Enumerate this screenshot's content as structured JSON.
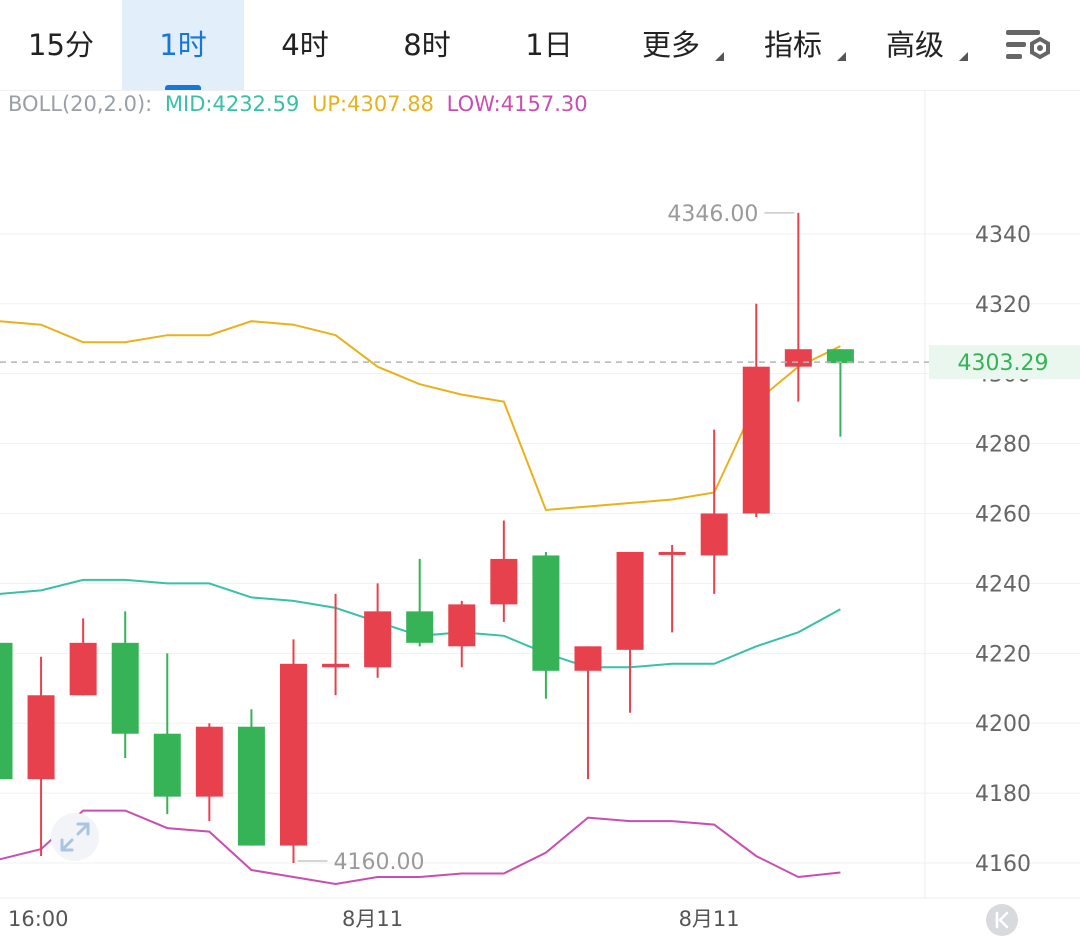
{
  "tabs": [
    {
      "label": "15分",
      "active": false,
      "dropdown": false
    },
    {
      "label": "1时",
      "active": true,
      "dropdown": false
    },
    {
      "label": "4时",
      "active": false,
      "dropdown": false
    },
    {
      "label": "8时",
      "active": false,
      "dropdown": false
    },
    {
      "label": "1日",
      "active": false,
      "dropdown": false
    },
    {
      "label": "更多",
      "active": false,
      "dropdown": true
    },
    {
      "label": "指标",
      "active": false,
      "dropdown": true
    },
    {
      "label": "高级",
      "active": false,
      "dropdown": true
    }
  ],
  "settings_icon": "chart-settings-icon",
  "indicator": {
    "name": "BOLL(20,2.0):",
    "mid": "MID:4232.59",
    "up": "UP:4307.88",
    "low": "LOW:4157.30",
    "colors": {
      "name": "#9aa0a6",
      "mid": "#39c0a6",
      "up": "#e8b21a",
      "low": "#c84fb0"
    }
  },
  "colors": {
    "up": "#e8414e",
    "down": "#35b356",
    "accent": "#1677d6"
  },
  "chart_data": {
    "type": "candlestick",
    "ylim": [
      4150,
      4372
    ],
    "y_ticks": [
      4160,
      4180,
      4200,
      4220,
      4240,
      4260,
      4280,
      4300,
      4320,
      4340
    ],
    "x_labels": [
      {
        "label": "16:00",
        "index": 0
      },
      {
        "label": "8月11",
        "index": 8
      },
      {
        "label": "8月11",
        "index": 16
      }
    ],
    "last_price": "4303.29",
    "max_label": "4346.00",
    "min_label": "4160.00",
    "candles": [
      {
        "o": 4223,
        "h": 4223,
        "l": 4184,
        "c": 4184
      },
      {
        "o": 4184,
        "h": 4219,
        "l": 4162,
        "c": 4208
      },
      {
        "o": 4208,
        "h": 4230,
        "l": 4208,
        "c": 4223
      },
      {
        "o": 4223,
        "h": 4232,
        "l": 4190,
        "c": 4197
      },
      {
        "o": 4197,
        "h": 4220,
        "l": 4174,
        "c": 4179
      },
      {
        "o": 4179,
        "h": 4200,
        "l": 4172,
        "c": 4199
      },
      {
        "o": 4199,
        "h": 4204,
        "l": 4165,
        "c": 4165
      },
      {
        "o": 4165,
        "h": 4224,
        "l": 4160,
        "c": 4217
      },
      {
        "o": 4216,
        "h": 4237,
        "l": 4208,
        "c": 4217
      },
      {
        "o": 4216,
        "h": 4240,
        "l": 4213,
        "c": 4232
      },
      {
        "o": 4232,
        "h": 4247,
        "l": 4222,
        "c": 4223
      },
      {
        "o": 4222,
        "h": 4235,
        "l": 4216,
        "c": 4234
      },
      {
        "o": 4234,
        "h": 4258,
        "l": 4229,
        "c": 4247
      },
      {
        "o": 4248,
        "h": 4249,
        "l": 4207,
        "c": 4215
      },
      {
        "o": 4215,
        "h": 4222,
        "l": 4184,
        "c": 4222
      },
      {
        "o": 4221,
        "h": 4249,
        "l": 4203,
        "c": 4249
      },
      {
        "o": 4249,
        "h": 4251,
        "l": 4226,
        "c": 4249
      },
      {
        "o": 4248,
        "h": 4284,
        "l": 4237,
        "c": 4260
      },
      {
        "o": 4260,
        "h": 4320,
        "l": 4259,
        "c": 4302
      },
      {
        "o": 4302,
        "h": 4346,
        "l": 4292,
        "c": 4307
      },
      {
        "o": 4307,
        "h": 4307,
        "l": 4282,
        "c": 4303
      }
    ],
    "boll_up": [
      4315,
      4314,
      4309,
      4309,
      4311,
      4311,
      4315,
      4314,
      4311,
      4302,
      4297,
      4294,
      4292,
      4261,
      4262,
      4263,
      4264,
      4266,
      4292,
      4302,
      4307.88
    ],
    "boll_mid": [
      4237,
      4238,
      4241,
      4241,
      4240,
      4240,
      4236,
      4235,
      4233,
      4229,
      4225,
      4226,
      4225,
      4220,
      4216,
      4216,
      4217,
      4217,
      4222,
      4226,
      4232.59
    ],
    "boll_low": [
      4161,
      4164,
      4175,
      4175,
      4170,
      4169,
      4158,
      4156,
      4154,
      4156,
      4156,
      4157,
      4157,
      4163,
      4173,
      4172,
      4172,
      4171,
      4162,
      4156,
      4157.3
    ]
  }
}
